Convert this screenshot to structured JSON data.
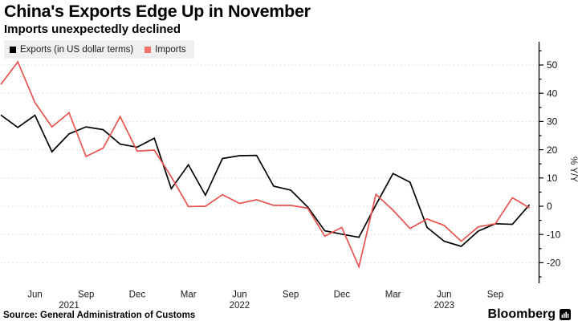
{
  "header": {
    "title": "China's Exports Edge Up in November",
    "subtitle": "Imports unexpectedly declined"
  },
  "legend": {
    "items": [
      {
        "label": "Exports (in US dollar terms)",
        "color": "#000000"
      },
      {
        "label": "Imports",
        "color": "#f4736d"
      }
    ]
  },
  "footer": {
    "source": "Source: General Administration of Customs",
    "brand": "Bloomberg"
  },
  "chart_data": {
    "type": "line",
    "title": "China's Exports Edge Up in November",
    "subtitle": "Imports unexpectedly declined",
    "xlabel": "",
    "ylabel": "% Y/Y",
    "ylim": [
      -27,
      58
    ],
    "grid": "horizontal-dotted",
    "legend_position": "top-left",
    "yticks_major": [
      50,
      40,
      30,
      20,
      10,
      0,
      -10,
      -20
    ],
    "yticks_minor": [
      55,
      45,
      35,
      25,
      15,
      5,
      -5,
      -15,
      -25
    ],
    "x": [
      "Apr 2021",
      "May 2021",
      "Jun 2021",
      "Jul 2021",
      "Aug 2021",
      "Sep 2021",
      "Oct 2021",
      "Nov 2021",
      "Dec 2021",
      "Jan 2022",
      "Feb 2022",
      "Mar 2022",
      "Apr 2022",
      "May 2022",
      "Jun 2022",
      "Jul 2022",
      "Aug 2022",
      "Sep 2022",
      "Oct 2022",
      "Nov 2022",
      "Dec 2022",
      "Jan 2023",
      "Feb 2023",
      "Mar 2023",
      "Apr 2023",
      "May 2023",
      "Jun 2023",
      "Jul 2023",
      "Aug 2023",
      "Sep 2023",
      "Oct 2023",
      "Nov 2023"
    ],
    "xticks": [
      {
        "idx": 2,
        "label": "Jun"
      },
      {
        "idx": 5,
        "label": "Sep"
      },
      {
        "idx": 8,
        "label": "Dec"
      },
      {
        "idx": 11,
        "label": "Mar"
      },
      {
        "idx": 14,
        "label": "Jun"
      },
      {
        "idx": 17,
        "label": "Sep"
      },
      {
        "idx": 20,
        "label": "Dec"
      },
      {
        "idx": 23,
        "label": "Mar"
      },
      {
        "idx": 26,
        "label": "Jun"
      },
      {
        "idx": 29,
        "label": "Sep"
      }
    ],
    "year_ticks": [
      {
        "idx": 4,
        "label": "2021"
      },
      {
        "idx": 14,
        "label": "2022"
      },
      {
        "idx": 26,
        "label": "2023"
      }
    ],
    "series": [
      {
        "name": "Exports (in US dollar terms)",
        "color": "#000000",
        "values": [
          32.3,
          27.9,
          32.2,
          19.3,
          25.6,
          28.1,
          27.1,
          22.0,
          20.9,
          24.1,
          6.2,
          14.7,
          3.9,
          16.9,
          17.9,
          18.0,
          7.1,
          5.7,
          -0.3,
          -8.7,
          -9.9,
          -11.0,
          0.5,
          11.6,
          8.5,
          -7.5,
          -12.4,
          -14.2,
          -8.8,
          -6.2,
          -6.4,
          0.5
        ]
      },
      {
        "name": "Imports",
        "color": "#e8534e",
        "values": [
          43.1,
          51.1,
          36.7,
          28.1,
          33.1,
          17.6,
          20.6,
          31.7,
          19.5,
          19.9,
          10.4,
          -0.1,
          0.0,
          4.1,
          1.0,
          2.3,
          0.3,
          0.3,
          -0.7,
          -10.6,
          -7.5,
          -21.4,
          4.2,
          -1.4,
          -7.9,
          -4.5,
          -6.8,
          -12.4,
          -7.3,
          -6.2,
          3.0,
          -0.6
        ]
      }
    ],
    "style": {
      "grid_color": "#d8d8d8",
      "axis_color": "#000000",
      "tick_text_color": "#111111"
    }
  }
}
